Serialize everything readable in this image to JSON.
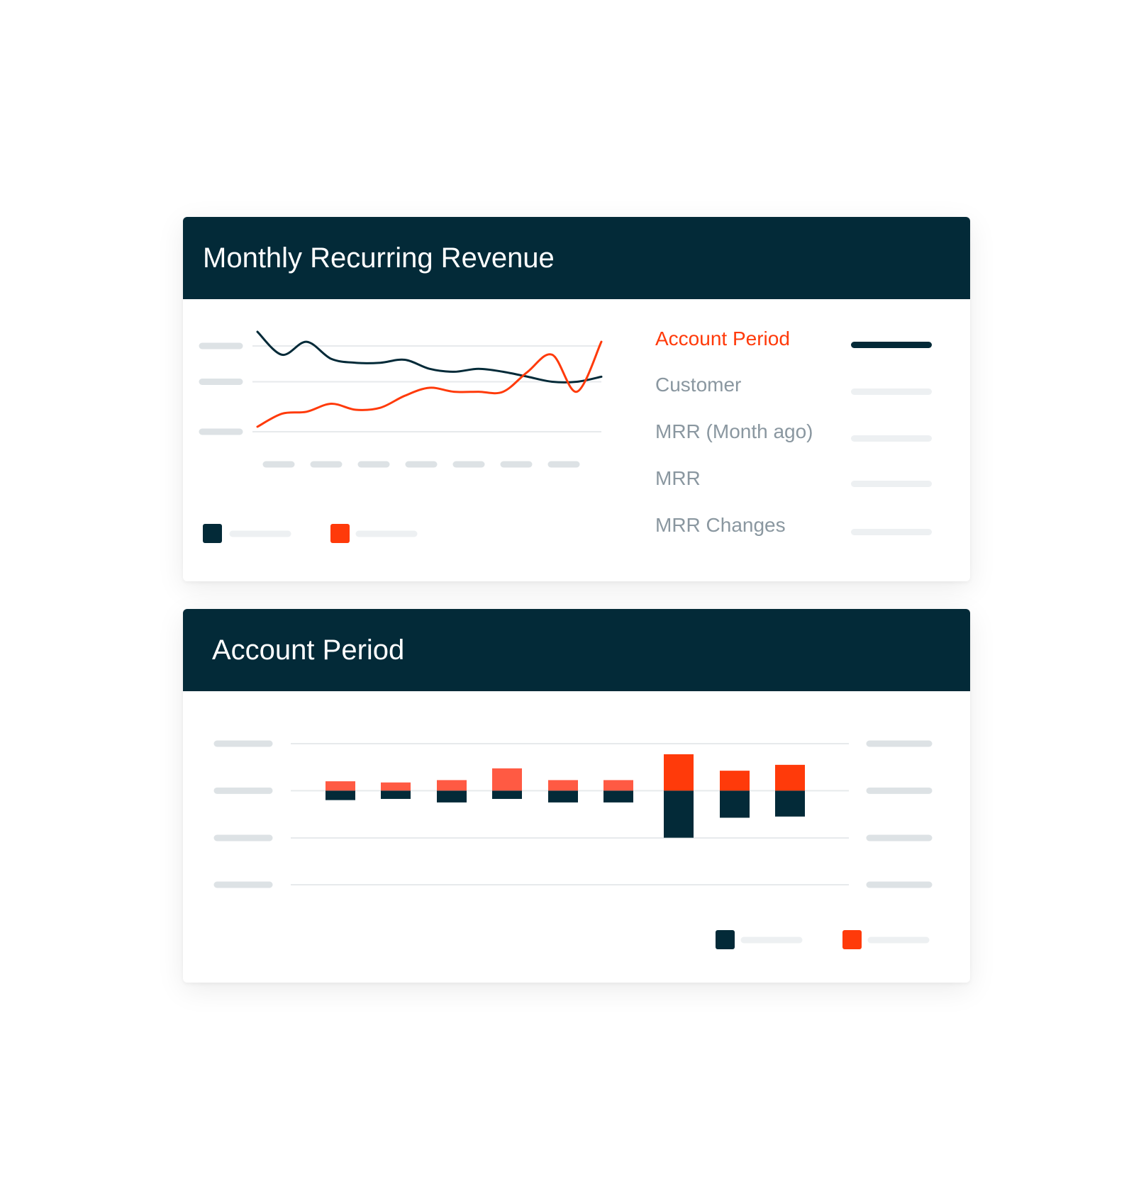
{
  "colors": {
    "dark": "#032a38",
    "accent": "#ff3a0a",
    "accent_light": "#ff5a43",
    "placeholder": "#dde2e5"
  },
  "mrr_card": {
    "title": "Monthly Recurring Revenue",
    "metrics": [
      {
        "label": "Account Period",
        "active": true
      },
      {
        "label": "Customer",
        "active": false
      },
      {
        "label": "MRR (Month ago)",
        "active": false
      },
      {
        "label": "MRR",
        "active": false
      },
      {
        "label": "MRR Changes",
        "active": false
      }
    ]
  },
  "account_period_card": {
    "title": "Account Period"
  },
  "chart_data": [
    {
      "type": "line",
      "title": "Monthly Recurring Revenue",
      "x": [
        0,
        1,
        2,
        3,
        4,
        5,
        6,
        7,
        8,
        9,
        10,
        11,
        12,
        13,
        14
      ],
      "ylim": [
        0,
        100
      ],
      "grid": true,
      "series": [
        {
          "color": "#032a38",
          "values": [
            100,
            77,
            90,
            73,
            69,
            69,
            72,
            63,
            60,
            63,
            60,
            55,
            50,
            50,
            55
          ]
        },
        {
          "color": "#ff3a0a",
          "values": [
            5,
            18,
            20,
            28,
            22,
            24,
            36,
            44,
            40,
            40,
            40,
            60,
            77,
            40,
            90
          ]
        }
      ]
    },
    {
      "type": "bar",
      "title": "Account Period",
      "categories": [
        "1",
        "2",
        "3",
        "4",
        "5",
        "6",
        "7",
        "8",
        "9"
      ],
      "ylim": [
        -4,
        2
      ],
      "grid": true,
      "series": [
        {
          "color": "#ff5a43",
          "values": [
            0.4,
            0.35,
            0.45,
            0.95,
            0.45,
            0.45,
            1.55,
            0.85,
            1.1
          ]
        },
        {
          "color": "#032a38",
          "values": [
            -0.4,
            -0.35,
            -0.5,
            -0.35,
            -0.5,
            -0.5,
            -2.0,
            -1.15,
            -1.1
          ]
        }
      ]
    }
  ]
}
